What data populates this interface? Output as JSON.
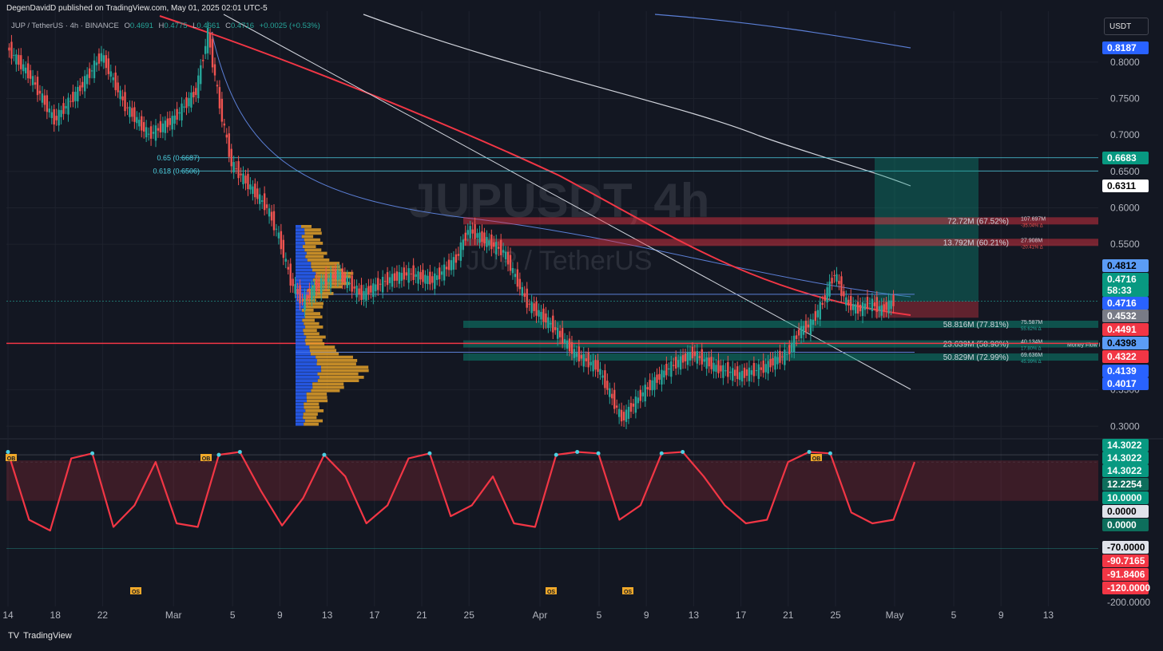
{
  "header": {
    "published": "DegenDavidD published on TradingView.com, May 01, 2025 02:01 UTC-5",
    "symbol": "JUP / TetherUS · 4h · BINANCE",
    "ohlc": {
      "o_label": "O",
      "o": "0.4691",
      "h_label": "H",
      "h": "0.4775",
      "l_label": "L",
      "l": "0.4661",
      "c_label": "C",
      "c": "0.4716",
      "change": "+0.0025 (+0.53%)"
    },
    "currency_button": "USDT",
    "watermark_main": "JUPUSDT, 4h",
    "watermark_sub": "JUP / TetherUS"
  },
  "footer": {
    "brand": "TradingView"
  },
  "colors": {
    "bg": "#131722",
    "up": "#26a69a",
    "down": "#ef5350",
    "ema_red": "#f23645",
    "ma_white": "#d1d4dc",
    "ma_blue": "#5b7fd6",
    "teal": "#089981",
    "fib": "#4dd0e1"
  },
  "chart_data": [
    {
      "type": "line",
      "title": "JUPUSDT, 4h",
      "xlabel": "",
      "ylabel": "",
      "x_ticks": [
        "14",
        "18",
        "22",
        "Mar",
        "5",
        "9",
        "13",
        "17",
        "21",
        "25",
        "Apr",
        "5",
        "9",
        "13",
        "17",
        "21",
        "25",
        "May",
        "5",
        "9",
        "13"
      ],
      "y_ticks": [
        "0.8000",
        "0.7500",
        "0.7000",
        "0.6500",
        "0.6000",
        "0.5500",
        "0.3500",
        "0.3000"
      ],
      "ylim": [
        0.285,
        0.87
      ],
      "series": [
        {
          "name": "",
          "x": [
            "Feb 14",
            "Feb 16",
            "Feb 18",
            "Feb 20",
            "Feb 22",
            "Feb 24",
            "Feb 26",
            "Feb 28",
            "Mar 2",
            "Mar 3",
            "Mar 4",
            "Mar 5",
            "Mar 6",
            "Mar 8",
            "Mar 9",
            "Mar 10",
            "Mar 11",
            "Mar 12",
            "Mar 14",
            "Mar 16",
            "Mar 18",
            "Mar 20",
            "Mar 22",
            "Mar 24",
            "Mar 25",
            "Mar 26",
            "Mar 28",
            "Mar 30",
            "Apr 1",
            "Apr 3",
            "Apr 5",
            "Apr 7",
            "Apr 8",
            "Apr 9",
            "Apr 11",
            "Apr 13",
            "Apr 15",
            "Apr 17",
            "Apr 19",
            "Apr 21",
            "Apr 22",
            "Apr 23",
            "Apr 24",
            "Apr 25",
            "Apr 26",
            "Apr 27",
            "Apr 28",
            "Apr 29",
            "Apr 30"
          ],
          "values": [
            0.82,
            0.78,
            0.72,
            0.76,
            0.81,
            0.74,
            0.7,
            0.72,
            0.76,
            0.84,
            0.74,
            0.66,
            0.64,
            0.6,
            0.56,
            0.5,
            0.47,
            0.49,
            0.51,
            0.48,
            0.5,
            0.51,
            0.5,
            0.53,
            0.57,
            0.56,
            0.54,
            0.47,
            0.44,
            0.4,
            0.38,
            0.31,
            0.33,
            0.35,
            0.38,
            0.4,
            0.38,
            0.37,
            0.38,
            0.4,
            0.43,
            0.44,
            0.47,
            0.51,
            0.47,
            0.46,
            0.47,
            0.46,
            0.4716
          ]
        }
      ],
      "price_labels": [
        "0.8187",
        "0.6683",
        "0.6311",
        "0.4812",
        "0.4716",
        "58:33",
        "0.4716",
        "0.4532",
        "0.4491",
        "0.4398",
        "0.4322",
        "0.4139",
        "0.4017"
      ],
      "fib_levels": [
        {
          "label": "0.65 (0.6687)",
          "value": 0.6687
        },
        {
          "label": "0.618 (0.6506)",
          "value": 0.6506
        }
      ],
      "zone_labels": [
        {
          "text": "72.72M (67.52%)",
          "value": 0.5815,
          "note": "107.697M",
          "sub": "-35.04% Δ"
        },
        {
          "text": "13.792M (60.21%)",
          "value": 0.552,
          "note": "27.908M",
          "sub": "-20.41% Δ"
        },
        {
          "text": "58.816M (77.81%)",
          "value": 0.4395,
          "note": "75.587M",
          "sub": "55.62% Δ"
        },
        {
          "text": "23.639M (58.90%)",
          "value": 0.4125,
          "note": "40.134M",
          "sub": "17.80% Δ"
        },
        {
          "text": "50.829M (72.99%)",
          "value": 0.3945,
          "note": "69.636M",
          "sub": "45.99% Δ"
        }
      ],
      "annotation": "Money Flow I"
    },
    {
      "type": "line",
      "title": "",
      "y_ticks": [
        "-200.0000"
      ],
      "ylim": [
        -200,
        30
      ],
      "value_labels": [
        "14.3022",
        "14.3022",
        "14.3022",
        "12.2254",
        "10.0000",
        "0.0000",
        "0.0000",
        "-70.0000",
        "-90.7165",
        "-91.8406",
        "-120.0000"
      ],
      "markers": [
        "OB",
        "OB",
        "OB",
        "OS",
        "OS",
        "OS"
      ],
      "series": [
        {
          "name": "",
          "values": [
            14,
            -80,
            -95,
            5,
            12,
            -90,
            -60,
            0,
            -85,
            -90,
            10,
            14,
            -40,
            -88,
            -50,
            10,
            -20,
            -85,
            -60,
            5,
            12,
            -75,
            -60,
            -20,
            -85,
            -90,
            10,
            14,
            12,
            -80,
            -60,
            12,
            14,
            -20,
            -60,
            -85,
            -80,
            0,
            14,
            12,
            -70,
            -85,
            -80,
            0
          ]
        }
      ]
    }
  ]
}
